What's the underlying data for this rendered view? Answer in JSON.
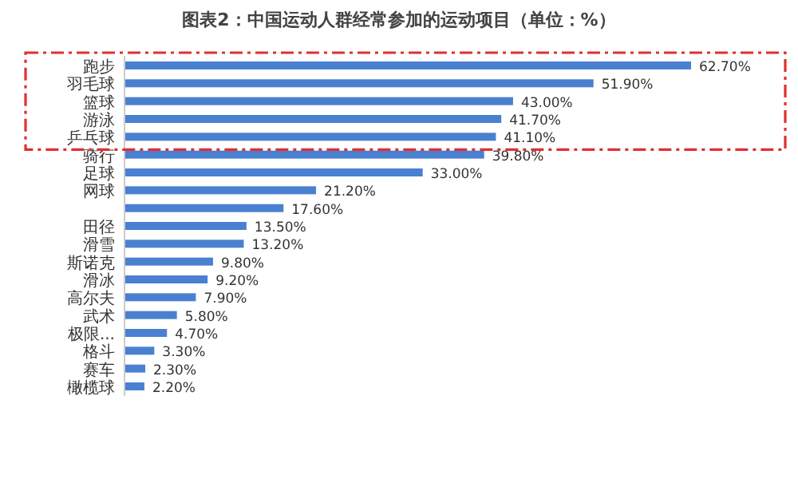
{
  "chart_data": {
    "type": "bar",
    "orientation": "horizontal",
    "title": "图表2：中国运动人群经常参加的运动项目（单位：%）",
    "categories": [
      "跑步",
      "羽毛球",
      "篮球",
      "游泳",
      "乒乓球",
      "骑行",
      "足球",
      "网球",
      null,
      "田径",
      "滑雪",
      "斯诺克",
      "滑冰",
      "高尔夫",
      "武术",
      "极限...",
      "格斗",
      "赛车",
      "橄榄球"
    ],
    "values": [
      62.7,
      51.9,
      43.0,
      41.7,
      41.1,
      39.8,
      33.0,
      21.2,
      17.6,
      13.5,
      13.2,
      9.8,
      9.2,
      7.9,
      5.8,
      4.7,
      3.3,
      2.3,
      2.2
    ],
    "value_labels": [
      "62.70%",
      "51.90%",
      "43.00%",
      "41.70%",
      "41.10%",
      "39.80%",
      "33.00%",
      "21.20%",
      "17.60%",
      "13.50%",
      "13.20%",
      "9.80%",
      "9.20%",
      "7.90%",
      "5.80%",
      "4.70%",
      "3.30%",
      "2.30%",
      "2.20%"
    ],
    "color": "#4a80d0"
  }
}
